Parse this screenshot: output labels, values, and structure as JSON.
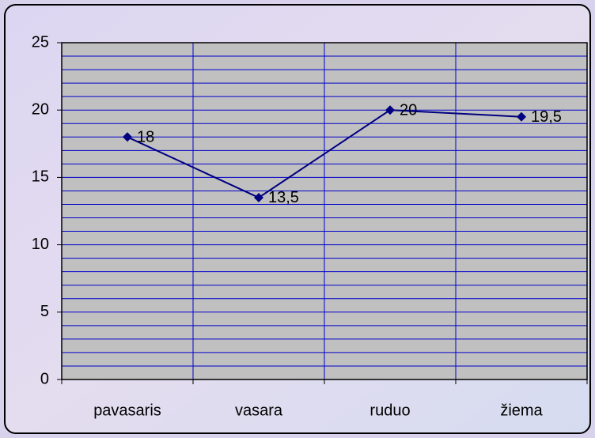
{
  "chart_data": {
    "type": "line",
    "categories": [
      "pavasaris",
      "vasara",
      "ruduo",
      "žiema"
    ],
    "series": [
      {
        "name": null,
        "color": "#000080",
        "values": [
          18,
          13.5,
          20,
          19.5
        ],
        "value_labels": [
          "18",
          "13,5",
          "20",
          "19,5"
        ]
      }
    ],
    "ylim": [
      0,
      25
    ],
    "yticks": [
      0,
      5,
      10,
      15,
      20,
      25
    ],
    "y_minor_ticks": [
      1,
      2,
      3,
      4,
      6,
      7,
      8,
      9,
      11,
      12,
      13,
      14,
      16,
      17,
      18,
      19,
      21,
      22,
      23,
      24
    ],
    "grid": true,
    "plot_background": "#c0c0c0",
    "grid_color": "#0000cc"
  }
}
